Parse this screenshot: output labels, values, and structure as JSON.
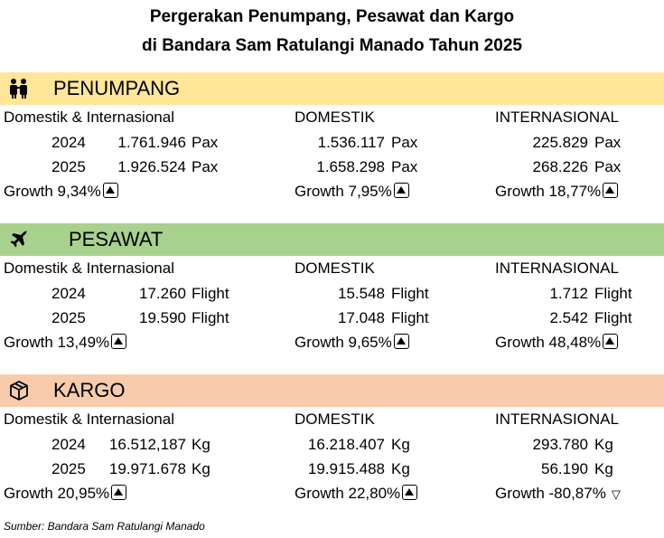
{
  "title_line1": "Pergerakan Penumpang, Pesawat dan Kargo",
  "title_line2": "di Bandara Sam Ratulangi Manado Tahun 2025",
  "sections": [
    {
      "key": "penumpang",
      "label": "PENUMPANG",
      "icon": "people-icon",
      "color": "#FFE699",
      "unit": "Pax",
      "columns": [
        {
          "header": "Domestik & Internasional",
          "v2024": "1.761.946",
          "v2025": "1.926.524",
          "growth": "Growth 9,34%",
          "trend": "up"
        },
        {
          "header": "DOMESTIK",
          "v2024": "1.536.117",
          "v2025": "1.658.298",
          "growth": "Growth 7,95%",
          "trend": "up"
        },
        {
          "header": "INTERNASIONAL",
          "v2024": "225.829",
          "v2025": "268.226",
          "growth": "Growth 18,77%",
          "trend": "up"
        }
      ]
    },
    {
      "key": "pesawat",
      "label": "PESAWAT",
      "icon": "airplane-icon",
      "color": "#A9D18E",
      "unit": "Flight",
      "columns": [
        {
          "header": "Domestik & Internasional",
          "v2024": "17.260",
          "v2025": "19.590",
          "growth": "Growth 13,49%",
          "trend": "up"
        },
        {
          "header": "DOMESTIK",
          "v2024": "15.548",
          "v2025": "17.048",
          "growth": "Growth 9,65%",
          "trend": "up"
        },
        {
          "header": "INTERNASIONAL",
          "v2024": "1.712",
          "v2025": "2.542",
          "growth": "Growth 48,48%",
          "trend": "up"
        }
      ]
    },
    {
      "key": "kargo",
      "label": "KARGO",
      "icon": "package-icon",
      "color": "#F8CBAD",
      "unit": "Kg",
      "columns": [
        {
          "header": "Domestik & Internasional",
          "v2024": "16.512,187",
          "v2025": "19.971.678",
          "growth": "Growth 20,95%",
          "trend": "up"
        },
        {
          "header": "DOMESTIK",
          "v2024": "16.218.407",
          "v2025": "19.915.488",
          "growth": "Growth 22,80%",
          "trend": "up"
        },
        {
          "header": "INTERNASIONAL",
          "v2024": "293.780",
          "v2025": "56.190",
          "growth": "Growth -80,87%",
          "trend": "down"
        }
      ]
    }
  ],
  "years": [
    "2024",
    "2025"
  ],
  "source": "Sumber: Bandara Sam Ratulangi Manado"
}
